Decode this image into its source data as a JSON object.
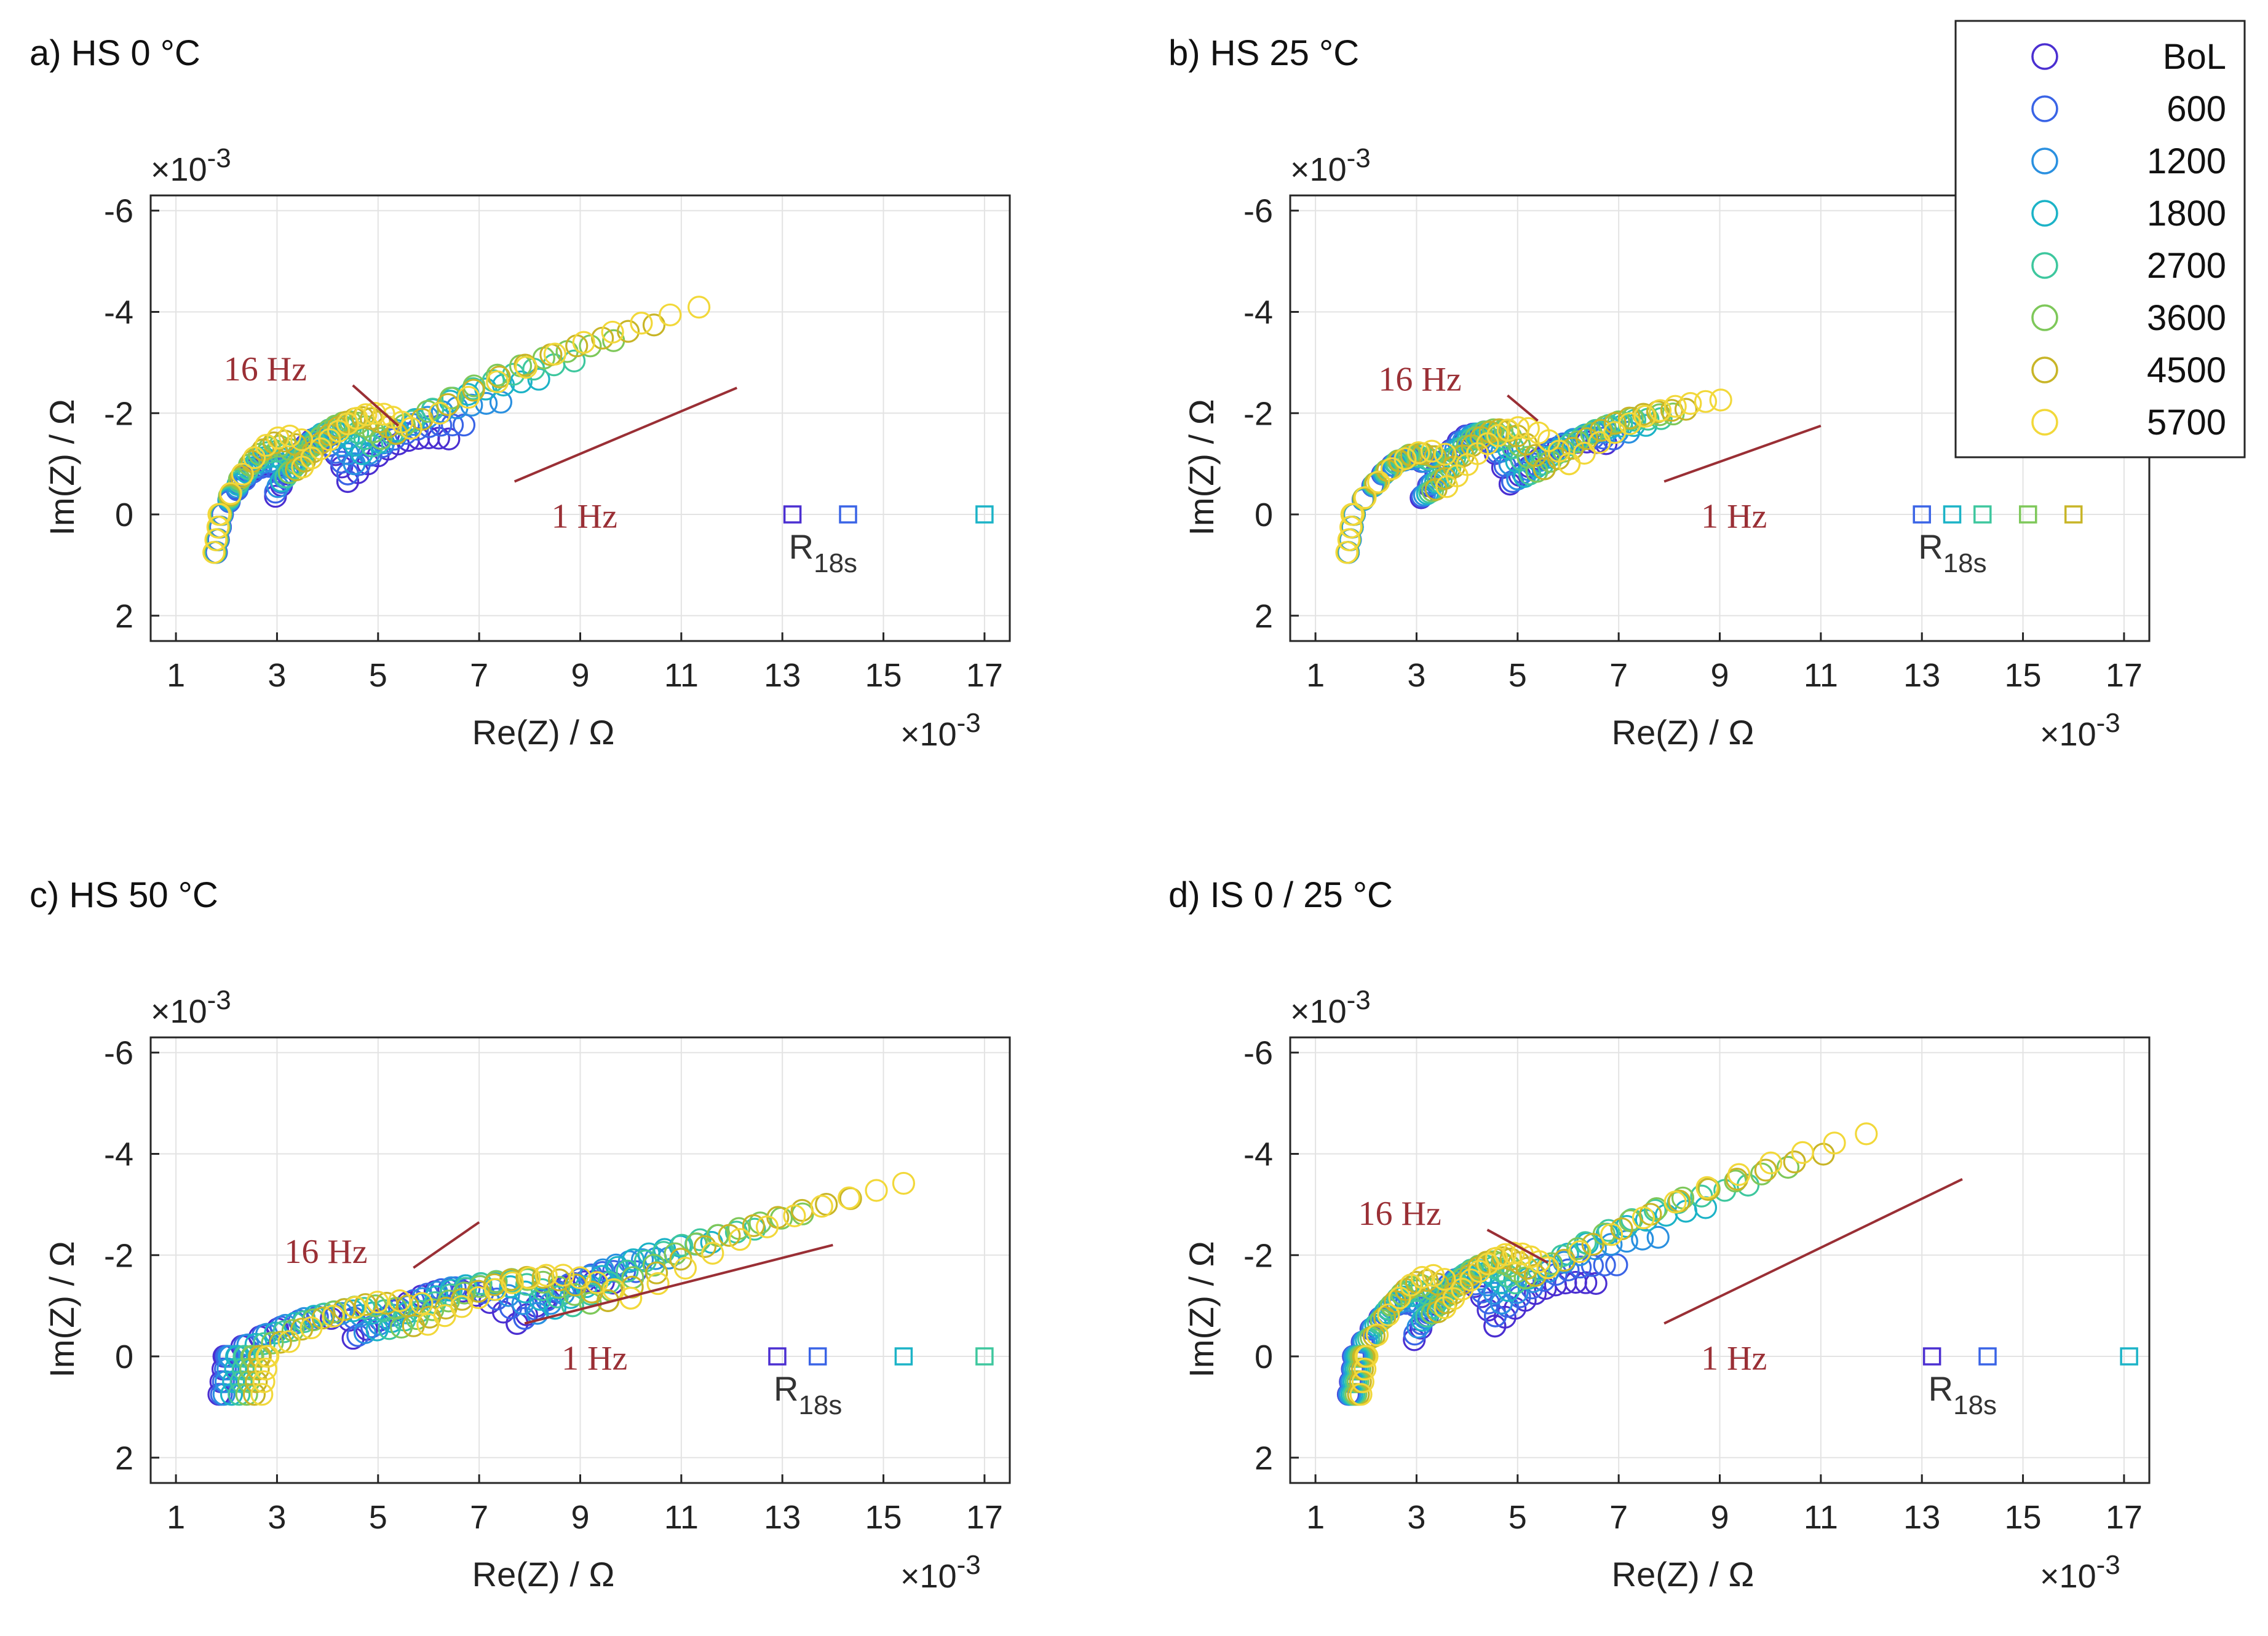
{
  "chart_data": {
    "type": "scatter",
    "figure": "Nyquist plots of impedance over aging",
    "legend": {
      "placement": "top-right",
      "entries": [
        "BoL",
        "600",
        "1200",
        "1800",
        "2700",
        "3600",
        "4500",
        "5700"
      ],
      "colors": [
        "#4b2fd1",
        "#3a64e6",
        "#2a90e0",
        "#1cb3c7",
        "#3ec79e",
        "#7ec85a",
        "#c8b527",
        "#f2d83a"
      ]
    },
    "x_axis": {
      "label": "Re(Z)",
      "unit": "Ω",
      "separator": "/",
      "range": [
        0.5,
        17.5
      ],
      "ticks": [
        1,
        3,
        5,
        7,
        9,
        11,
        13,
        15,
        17
      ],
      "multiplier": "×10",
      "exponent": "-3"
    },
    "y_axis": {
      "label": "Im(Z)",
      "unit": "Ω",
      "separator": "/",
      "range": [
        2.5,
        -6.3
      ],
      "ticks": [
        -6,
        -4,
        -2,
        0,
        2
      ],
      "multiplier": "×10",
      "exponent": "-3"
    },
    "grid": true,
    "panels": [
      {
        "title": "a) HS 0 °C",
        "series": [
          {
            "name": "BoL",
            "x0": 1.8,
            "ri": 2.6,
            "rd": 2.0,
            "sh": 1.0,
            "dr": 0.65
          },
          {
            "name": "600",
            "x0": 1.8,
            "ri": 2.6,
            "rd": 2.3,
            "sh": 0.95,
            "dr": 0.8
          },
          {
            "name": "1200",
            "x0": 1.78,
            "ri": 2.75,
            "rd": 2.9,
            "sh": 1.05,
            "dr": 1.0
          },
          {
            "name": "1800",
            "x0": 1.78,
            "ri": 2.9,
            "rd": 3.5,
            "sh": 1.15,
            "dr": 1.2
          },
          {
            "name": "2700",
            "x0": 1.78,
            "ri": 3.1,
            "rd": 4.0,
            "sh": 1.25,
            "dr": 1.35
          },
          {
            "name": "3600",
            "x0": 1.76,
            "ri": 3.3,
            "rd": 4.6,
            "sh": 1.35,
            "dr": 1.5
          },
          {
            "name": "4500",
            "x0": 1.76,
            "ri": 3.6,
            "rd": 5.1,
            "sh": 1.45,
            "dr": 1.6
          },
          {
            "name": "5700",
            "x0": 1.75,
            "ri": 3.9,
            "rd": 5.7,
            "sh": 1.55,
            "dr": 1.7
          }
        ],
        "r18s": [
          13.2,
          14.3,
          17.0
        ],
        "r18s_colors": [
          "#4b2fd1",
          "#3a64e6",
          "#1cb3c7"
        ],
        "r18s_label": "R",
        "r18s_sub": "18s",
        "label_16hz": "16 Hz",
        "label_1hz": "1 Hz",
        "line_16hz": [
          [
            4.5,
            -2.55
          ],
          [
            5.4,
            -1.75
          ]
        ],
        "line_1hz": [
          [
            7.7,
            -0.65
          ],
          [
            12.1,
            -2.5
          ]
        ]
      },
      {
        "title": "b) HS 25 °C",
        "series": [
          {
            "name": "BoL",
            "x0": 1.65,
            "ri": 3.2,
            "rd": 1.9,
            "sh": 1.1,
            "dr": 0.6
          },
          {
            "name": "600",
            "x0": 1.65,
            "ri": 3.25,
            "rd": 2.0,
            "sh": 1.1,
            "dr": 0.65
          },
          {
            "name": "1200",
            "x0": 1.65,
            "ri": 3.35,
            "rd": 2.2,
            "sh": 1.1,
            "dr": 0.7
          },
          {
            "name": "1800",
            "x0": 1.64,
            "ri": 3.5,
            "rd": 2.4,
            "sh": 1.15,
            "dr": 0.75
          },
          {
            "name": "2700",
            "x0": 1.64,
            "ri": 3.6,
            "rd": 2.6,
            "sh": 1.15,
            "dr": 0.8
          },
          {
            "name": "3600",
            "x0": 1.63,
            "ri": 3.75,
            "rd": 2.7,
            "sh": 1.2,
            "dr": 0.85
          },
          {
            "name": "4500",
            "x0": 1.63,
            "ri": 3.9,
            "rd": 2.8,
            "sh": 1.2,
            "dr": 0.9
          },
          {
            "name": "5700",
            "x0": 1.62,
            "ri": 4.4,
            "rd": 3.0,
            "sh": 1.25,
            "dr": 1.0
          }
        ],
        "r18s": [
          13.0,
          13.6,
          14.2,
          15.1,
          16.0
        ],
        "r18s_colors": [
          "#3a64e6",
          "#1cb3c7",
          "#3ec79e",
          "#7ec85a",
          "#c8b527"
        ],
        "r18s_label": "R",
        "r18s_sub": "18s",
        "label_16hz": "16 Hz",
        "label_1hz": "1 Hz",
        "line_16hz": [
          [
            4.8,
            -2.35
          ],
          [
            5.4,
            -1.85
          ]
        ],
        "line_1hz": [
          [
            7.9,
            -0.65
          ],
          [
            11.0,
            -1.75
          ]
        ]
      },
      {
        "title": "c) HS 50 °C",
        "series": [
          {
            "name": "BoL",
            "x0": 1.85,
            "ri": 5.9,
            "rd": 1.9,
            "sh": 0.75,
            "dr": 0.65
          },
          {
            "name": "600",
            "x0": 1.9,
            "ri": 6.0,
            "rd": 2.2,
            "sh": 0.8,
            "dr": 0.75
          },
          {
            "name": "1200",
            "x0": 1.95,
            "ri": 6.2,
            "rd": 2.6,
            "sh": 0.85,
            "dr": 0.85
          },
          {
            "name": "1800",
            "x0": 2.1,
            "ri": 6.4,
            "rd": 3.1,
            "sh": 0.9,
            "dr": 0.95
          },
          {
            "name": "2700",
            "x0": 2.25,
            "ri": 6.6,
            "rd": 3.6,
            "sh": 0.95,
            "dr": 1.0
          },
          {
            "name": "3600",
            "x0": 2.4,
            "ri": 6.8,
            "rd": 4.2,
            "sh": 1.0,
            "dr": 1.05
          },
          {
            "name": "4500",
            "x0": 2.55,
            "ri": 7.0,
            "rd": 4.8,
            "sh": 1.05,
            "dr": 1.1
          },
          {
            "name": "5700",
            "x0": 2.7,
            "ri": 7.3,
            "rd": 5.4,
            "sh": 1.1,
            "dr": 1.15
          }
        ],
        "r18s": [
          12.9,
          13.7,
          15.4,
          17.0
        ],
        "r18s_colors": [
          "#4b2fd1",
          "#3a64e6",
          "#1cb3c7",
          "#3ec79e"
        ],
        "r18s_label": "R",
        "r18s_sub": "18s",
        "label_16hz": "16 Hz",
        "label_1hz": "1 Hz",
        "line_16hz": [
          [
            5.7,
            -1.75
          ],
          [
            7.0,
            -2.65
          ]
        ],
        "line_1hz": [
          [
            7.9,
            -0.65
          ],
          [
            14.0,
            -2.2
          ]
        ]
      },
      {
        "title": "d) IS 0 / 25 °C",
        "series": [
          {
            "name": "BoL",
            "x0": 1.65,
            "ri": 2.9,
            "rd": 2.0,
            "sh": 1.05,
            "dr": 0.6
          },
          {
            "name": "600",
            "x0": 1.66,
            "ri": 2.9,
            "rd": 2.4,
            "sh": 1.05,
            "dr": 0.8
          },
          {
            "name": "1200",
            "x0": 1.68,
            "ri": 3.0,
            "rd": 3.1,
            "sh": 1.1,
            "dr": 1.05
          },
          {
            "name": "1800",
            "x0": 1.72,
            "ri": 3.1,
            "rd": 3.9,
            "sh": 1.2,
            "dr": 1.3
          },
          {
            "name": "2700",
            "x0": 1.76,
            "ri": 3.2,
            "rd": 4.6,
            "sh": 1.3,
            "dr": 1.45
          },
          {
            "name": "3600",
            "x0": 1.8,
            "ri": 3.35,
            "rd": 5.2,
            "sh": 1.4,
            "dr": 1.55
          },
          {
            "name": "4500",
            "x0": 1.85,
            "ri": 3.5,
            "rd": 5.7,
            "sh": 1.5,
            "dr": 1.6
          },
          {
            "name": "5700",
            "x0": 1.9,
            "ri": 3.7,
            "rd": 6.3,
            "sh": 1.6,
            "dr": 1.75
          }
        ],
        "r18s": [
          13.2,
          14.3,
          17.1
        ],
        "r18s_colors": [
          "#4b2fd1",
          "#3a64e6",
          "#1cb3c7"
        ],
        "r18s_label": "R",
        "r18s_sub": "18s",
        "label_16hz": "16 Hz",
        "label_1hz": "1 Hz",
        "line_16hz": [
          [
            4.4,
            -2.5
          ],
          [
            5.6,
            -1.85
          ]
        ],
        "line_1hz": [
          [
            7.9,
            -0.65
          ],
          [
            13.8,
            -3.5
          ]
        ]
      }
    ]
  }
}
